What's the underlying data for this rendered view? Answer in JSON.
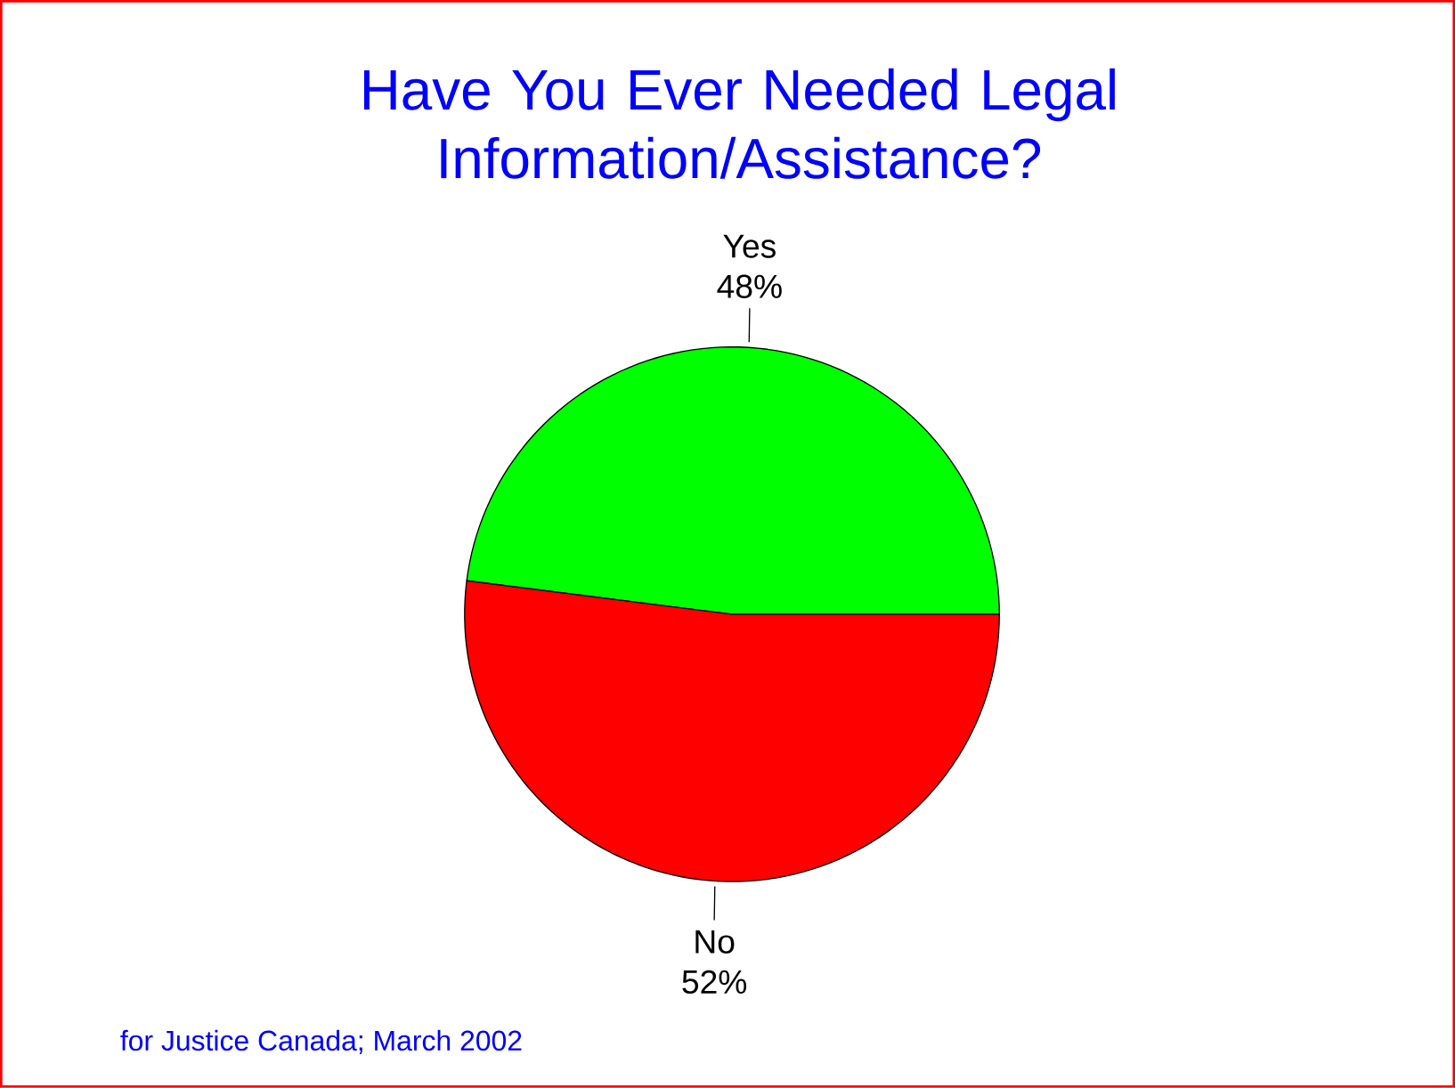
{
  "chart_data": {
    "type": "pie",
    "title": "Have You Ever Needed Legal Information/Assistance?",
    "categories": [
      "Yes",
      "No"
    ],
    "values": [
      48,
      52
    ],
    "colors": [
      "#00ff00",
      "#ff0000"
    ],
    "value_labels": [
      "48%",
      "52%"
    ],
    "annotations": [
      "for Justice Canada; March 2002"
    ]
  }
}
